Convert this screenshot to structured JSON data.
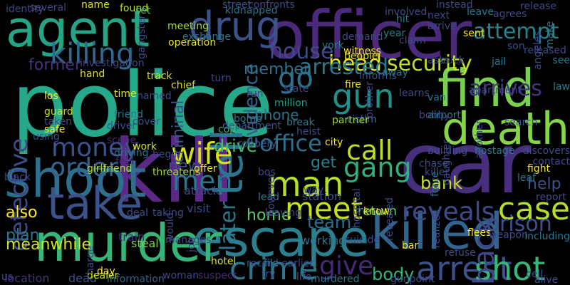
{
  "words": [
    {
      "text": "police",
      "color": "#26a98a",
      "rotate": false
    },
    {
      "text": "kill",
      "color": "#5a2a86",
      "rotate": false
    },
    {
      "text": "officer",
      "color": "#4b2a7c",
      "rotate": false
    },
    {
      "text": "car",
      "color": "#472f7d",
      "rotate": false
    },
    {
      "text": "agent",
      "color": "#25a584",
      "rotate": false
    },
    {
      "text": "escape",
      "color": "#2b7f8f",
      "rotate": false
    },
    {
      "text": "murder",
      "color": "#36b578",
      "rotate": false
    },
    {
      "text": "killed",
      "color": "#32658e",
      "rotate": false
    },
    {
      "text": "shoot",
      "color": "#2d708e",
      "rotate": false
    },
    {
      "text": "death",
      "color": "#86d549",
      "rotate": false
    },
    {
      "text": "find",
      "color": "#7ad151",
      "rotate": false
    },
    {
      "text": "drug",
      "color": "#3b528b",
      "rotate": false
    },
    {
      "text": "take",
      "color": "#3b528b",
      "rotate": false
    },
    {
      "text": "tell",
      "color": "#2b758e",
      "rotate": true
    },
    {
      "text": "killing",
      "color": "#31688e",
      "rotate": false
    },
    {
      "text": "crime",
      "color": "#2a788e",
      "rotate": false
    },
    {
      "text": "arrest",
      "color": "#3b528b",
      "rotate": false
    },
    {
      "text": "shot",
      "color": "#35b779",
      "rotate": false
    },
    {
      "text": "man",
      "color": "#b5de2b",
      "rotate": false
    },
    {
      "text": "meet",
      "color": "#c8e020",
      "rotate": false
    },
    {
      "text": "case",
      "color": "#b5de2b",
      "rotate": false
    },
    {
      "text": "wife",
      "color": "#d8e219",
      "rotate": false
    },
    {
      "text": "gun",
      "color": "#21918c",
      "rotate": false
    },
    {
      "text": "go",
      "color": "#2c728e",
      "rotate": false
    },
    {
      "text": "call",
      "color": "#bddf26",
      "rotate": false
    },
    {
      "text": "reveals",
      "color": "#3e4a89",
      "rotate": false
    },
    {
      "text": "back",
      "color": "#3f4788",
      "rotate": true
    },
    {
      "text": "money",
      "color": "#3b528b",
      "rotate": false
    },
    {
      "text": "order",
      "color": "#33638d",
      "rotate": false
    },
    {
      "text": "gang",
      "color": "#2db27d",
      "rotate": false
    },
    {
      "text": "men",
      "color": "#2a788e",
      "rotate": false
    },
    {
      "text": "give",
      "color": "#482878",
      "rotate": false
    },
    {
      "text": "office",
      "color": "#2e6f8e",
      "rotate": false
    },
    {
      "text": "attempt",
      "color": "#25858e",
      "rotate": false
    },
    {
      "text": "prison",
      "color": "#3c508b",
      "rotate": false
    },
    {
      "text": "head",
      "color": "#e5e419",
      "rotate": false
    },
    {
      "text": "arrested",
      "color": "#2a788e",
      "rotate": false
    },
    {
      "text": "security",
      "color": "#c2df23",
      "rotate": false
    },
    {
      "text": "arrives",
      "color": "#46337f",
      "rotate": false
    },
    {
      "text": "detective",
      "color": "#3e4a89",
      "rotate": true
    },
    {
      "text": "evidence",
      "color": "#33638d",
      "rotate": true
    },
    {
      "text": "criminal",
      "color": "#3a548c",
      "rotate": true
    },
    {
      "text": "later",
      "color": "#2a788e",
      "rotate": true
    },
    {
      "text": "house",
      "color": "#3e4989",
      "rotate": false
    },
    {
      "text": "former",
      "color": "#46327e",
      "rotate": false
    },
    {
      "text": "member",
      "color": "#2d708e",
      "rotate": false
    },
    {
      "text": "team",
      "color": "#2e6e8e",
      "rotate": false
    },
    {
      "text": "body",
      "color": "#31b57b",
      "rotate": false
    },
    {
      "text": "help",
      "color": "#3b528b",
      "rotate": false
    },
    {
      "text": "home",
      "color": "#5ec962",
      "rotate": false
    },
    {
      "text": "also",
      "color": "#fde725",
      "rotate": false
    },
    {
      "text": "plan",
      "color": "#2a788e",
      "rotate": false
    },
    {
      "text": "phone",
      "color": "#2c718e",
      "rotate": false
    },
    {
      "text": "drive",
      "color": "#46c06f",
      "rotate": false
    },
    {
      "text": "return",
      "color": "#5ec962",
      "rotate": false
    },
    {
      "text": "bank",
      "color": "#c5e021",
      "rotate": false
    },
    {
      "text": "get",
      "color": "#26828e",
      "rotate": false
    },
    {
      "text": "new",
      "color": "#3e4c8a",
      "rotate": false
    },
    {
      "text": "meanwhile",
      "color": "#d2e21b",
      "rotate": false
    },
    {
      "text": "steal",
      "color": "#7ad151",
      "rotate": false
    },
    {
      "text": "train",
      "color": "#472f7d",
      "rotate": false
    },
    {
      "text": "visit",
      "color": "#3f4788",
      "rotate": false
    },
    {
      "text": "location",
      "color": "#46337f",
      "rotate": false
    },
    {
      "text": "dead",
      "color": "#3b528b",
      "rotate": false
    },
    {
      "text": "dealer",
      "color": "#c0df25",
      "rotate": false
    },
    {
      "text": "information",
      "color": "#33638d",
      "rotate": false
    },
    {
      "text": "woman",
      "color": "#414487",
      "rotate": false
    },
    {
      "text": "suspect",
      "color": "#482878",
      "rotate": false
    },
    {
      "text": "life",
      "color": "#3b528b",
      "rotate": false
    },
    {
      "text": "murdered",
      "color": "#2a788e",
      "rotate": false
    },
    {
      "text": "hotel",
      "color": "#d8e219",
      "rotate": false
    },
    {
      "text": "record",
      "color": "#3e4a89",
      "rotate": false
    },
    {
      "text": "file",
      "color": "#2a788e",
      "rotate": false
    },
    {
      "text": "earlier",
      "color": "#3e4c8a",
      "rotate": false
    },
    {
      "text": "working",
      "color": "#2a788e",
      "rotate": false
    },
    {
      "text": "station",
      "color": "#3a548c",
      "rotate": false
    },
    {
      "text": "attack",
      "color": "#3e4a89",
      "rotate": false
    },
    {
      "text": "bos",
      "color": "#3f4788",
      "rotate": false
    },
    {
      "text": "offer",
      "color": "#e5e419",
      "rotate": false
    },
    {
      "text": "threatens",
      "color": "#a8db34",
      "rotate": false
    },
    {
      "text": "girlfriend",
      "color": "#addc30",
      "rotate": false
    },
    {
      "text": "feel",
      "color": "#482475",
      "rotate": false
    },
    {
      "text": "driving",
      "color": "#2c728e",
      "rotate": false
    },
    {
      "text": "work",
      "color": "#d0e11c",
      "rotate": false
    },
    {
      "text": "scene",
      "color": "#482576",
      "rotate": false
    },
    {
      "text": "driver",
      "color": "#3b528b",
      "rotate": false
    },
    {
      "text": "friend",
      "color": "#2a778e",
      "rotate": false
    },
    {
      "text": "time",
      "color": "#e5e419",
      "rotate": false
    },
    {
      "text": "guard",
      "color": "#c0df25",
      "rotate": false
    },
    {
      "text": "using",
      "color": "#3e4a89",
      "rotate": false
    },
    {
      "text": "hand",
      "color": "#d8e219",
      "rotate": false
    },
    {
      "text": "investigation",
      "color": "#3f4788",
      "rotate": false
    },
    {
      "text": "track",
      "color": "#d8e219",
      "rotate": false
    },
    {
      "text": "chief",
      "color": "#d8e219",
      "rotate": false
    },
    {
      "text": "name",
      "color": "#d8e219",
      "rotate": false
    },
    {
      "text": "found",
      "color": "#b8de29",
      "rotate": false
    },
    {
      "text": "set",
      "color": "#4ac16d",
      "rotate": false
    },
    {
      "text": "meeting",
      "color": "#a0da39",
      "rotate": false
    },
    {
      "text": "gangster",
      "color": "#3e4a89",
      "rotate": true
    },
    {
      "text": "several",
      "color": "#414487",
      "rotate": false
    },
    {
      "text": "exchange",
      "color": "#2a788e",
      "rotate": false
    },
    {
      "text": "operation",
      "color": "#e5e419",
      "rotate": false
    },
    {
      "text": "street",
      "color": "#3b528b",
      "rotate": false
    },
    {
      "text": "confronts",
      "color": "#3e4989",
      "rotate": false
    },
    {
      "text": "kidnapped",
      "color": "#2d708e",
      "rotate": false
    },
    {
      "text": "lead",
      "color": "#2a788e",
      "rotate": false
    },
    {
      "text": "bomb",
      "color": "#2a788e",
      "rotate": false
    },
    {
      "text": "run",
      "color": "#414487",
      "rotate": false
    },
    {
      "text": "turn",
      "color": "#414487",
      "rotate": false
    },
    {
      "text": "state",
      "color": "#414487",
      "rotate": false
    },
    {
      "text": "million",
      "color": "#1fa187",
      "rotate": false
    },
    {
      "text": "victim",
      "color": "#31688e",
      "rotate": false
    },
    {
      "text": "break",
      "color": "#2a788e",
      "rotate": false
    },
    {
      "text": "heist",
      "color": "#3e4a89",
      "rotate": false
    },
    {
      "text": "cop",
      "color": "#35b779",
      "rotate": false
    },
    {
      "text": "department",
      "color": "#3b528b",
      "rotate": false
    },
    {
      "text": "robbery",
      "color": "#3b528b",
      "rotate": false
    },
    {
      "text": "city",
      "color": "#fde725",
      "rotate": false
    },
    {
      "text": "partner",
      "color": "#9fda3a",
      "rotate": false
    },
    {
      "text": "brother",
      "color": "#3f4788",
      "rotate": true
    },
    {
      "text": "fire",
      "color": "#e5e419",
      "rotate": false
    },
    {
      "text": "informs",
      "color": "#3b528b",
      "rotate": false
    },
    {
      "text": "witness",
      "color": "#fde725",
      "rotate": false
    },
    {
      "text": "people",
      "color": "#e5e419",
      "rotate": false
    },
    {
      "text": "york",
      "color": "#2a788e",
      "rotate": false
    },
    {
      "text": "demand",
      "color": "#3e4a89",
      "rotate": false
    },
    {
      "text": "involved",
      "color": "#3e4a89",
      "rotate": false
    },
    {
      "text": "year",
      "color": "#26828e",
      "rotate": false
    },
    {
      "text": "hit",
      "color": "#2a788e",
      "rotate": false
    },
    {
      "text": "claim",
      "color": "#3e4a89",
      "rotate": false
    },
    {
      "text": "asks",
      "color": "#3e4a89",
      "rotate": false
    },
    {
      "text": "arrive",
      "color": "#3e4a89",
      "rotate": false
    },
    {
      "text": "next",
      "color": "#3e4a89",
      "rotate": false
    },
    {
      "text": "instead",
      "color": "#3e4a89",
      "rotate": false
    },
    {
      "text": "leave",
      "color": "#2a788e",
      "rotate": false
    },
    {
      "text": "identity",
      "color": "#3e4a89",
      "rotate": false
    },
    {
      "text": "release",
      "color": "#3e4a89",
      "rotate": false
    },
    {
      "text": "agrees",
      "color": "#3e4a89",
      "rotate": false
    },
    {
      "text": "sent",
      "color": "#fde725",
      "rotate": false
    },
    {
      "text": "son",
      "color": "#3e4a89",
      "rotate": false
    },
    {
      "text": "make",
      "color": "#2a788e",
      "rotate": true
    },
    {
      "text": "angeles",
      "color": "#3e4a89",
      "rotate": true
    },
    {
      "text": "released",
      "color": "#3e4a89",
      "rotate": false
    },
    {
      "text": "truck",
      "color": "#3e4a89",
      "rotate": false
    },
    {
      "text": "jail",
      "color": "#2a788e",
      "rotate": false
    },
    {
      "text": "see",
      "color": "#2a788e",
      "rotate": false
    },
    {
      "text": "law",
      "color": "#2a788e",
      "rotate": false
    },
    {
      "text": "van",
      "color": "#2a788e",
      "rotate": false
    },
    {
      "text": "airport",
      "color": "#2a788e",
      "rotate": false
    },
    {
      "text": "search",
      "color": "#3b528b",
      "rotate": false
    },
    {
      "text": "apartment",
      "color": "#3e4a89",
      "rotate": false
    },
    {
      "text": "learns",
      "color": "#3e4a89",
      "rotate": false
    },
    {
      "text": "bobby",
      "color": "#3e4a89",
      "rotate": false
    },
    {
      "text": "another",
      "color": "#3e4a89",
      "rotate": true
    },
    {
      "text": "discovers",
      "color": "#3e4a89",
      "rotate": false
    },
    {
      "text": "contact",
      "color": "#3e4a89",
      "rotate": false
    },
    {
      "text": "building",
      "color": "#3e4a89",
      "rotate": false
    },
    {
      "text": "hostage",
      "color": "#2a788e",
      "rotate": false
    },
    {
      "text": "chase",
      "color": "#3e4a89",
      "rotate": false
    },
    {
      "text": "fight",
      "color": "#fde725",
      "rotate": false
    },
    {
      "text": "daughter",
      "color": "#3e4a89",
      "rotate": true
    },
    {
      "text": "killer",
      "color": "#3e4a89",
      "rotate": false
    },
    {
      "text": "leaf",
      "color": "#2a788e",
      "rotate": false
    },
    {
      "text": "report",
      "color": "#3e4a89",
      "rotate": false
    },
    {
      "text": "force",
      "color": "#2a788e",
      "rotate": true
    },
    {
      "text": "revealed",
      "color": "#3e4a89",
      "rotate": true
    },
    {
      "text": "realizes",
      "color": "#3e4a89",
      "rotate": true
    },
    {
      "text": "flees",
      "color": "#fde725",
      "rotate": false
    },
    {
      "text": "weapon",
      "color": "#3e4a89",
      "rotate": false
    },
    {
      "text": "bar",
      "color": "#fde725",
      "rotate": false
    },
    {
      "text": "refuse",
      "color": "#3e4a89",
      "rotate": false
    },
    {
      "text": "including",
      "color": "#2a788e",
      "rotate": false
    },
    {
      "text": "cell",
      "color": "#3e4a89",
      "rotate": false
    },
    {
      "text": "alive",
      "color": "#3e4a89",
      "rotate": false
    },
    {
      "text": "gunpoint",
      "color": "#3e4a89",
      "rotate": false
    },
    {
      "text": "try",
      "color": "#3e4a89",
      "rotate": false
    },
    {
      "text": "way",
      "color": "#3e4a89",
      "rotate": false
    },
    {
      "text": "suicide",
      "color": "#3e4a89",
      "rotate": false
    },
    {
      "text": "hospital",
      "color": "#3e4a89",
      "rotate": true
    },
    {
      "text": "know",
      "color": "#fde725",
      "rotate": false
    },
    {
      "text": "named",
      "color": "#3e4a89",
      "rotate": false
    },
    {
      "text": "charge",
      "color": "#3e4a89",
      "rotate": true
    },
    {
      "text": "day",
      "color": "#fde725",
      "rotate": false
    },
    {
      "text": "us",
      "color": "#3e4a89",
      "rotate": false
    },
    {
      "text": "would",
      "color": "#3e4a89",
      "rotate": true
    },
    {
      "text": "taking",
      "color": "#3e4a89",
      "rotate": false
    },
    {
      "text": "deal",
      "color": "#3e4a89",
      "rotate": false
    },
    {
      "text": "job",
      "color": "#3e4a89",
      "rotate": true
    },
    {
      "text": "manages",
      "color": "#3e4a89",
      "rotate": false
    },
    {
      "text": "leaving",
      "color": "#3e4a89",
      "rotate": false
    },
    {
      "text": "however",
      "color": "#3e4a89",
      "rotate": true
    },
    {
      "text": "black",
      "color": "#3e4a89",
      "rotate": false
    },
    {
      "text": "begin",
      "color": "#3e4a89",
      "rotate": false
    },
    {
      "text": "cover",
      "color": "#3e4a89",
      "rotate": false
    },
    {
      "text": "taken",
      "color": "#3e4a89",
      "rotate": false
    },
    {
      "text": "safe",
      "color": "#fde725",
      "rotate": false
    },
    {
      "text": "los",
      "color": "#fde725",
      "rotate": false
    },
    {
      "text": "away",
      "color": "#2a788e",
      "rotate": false
    }
  ]
}
